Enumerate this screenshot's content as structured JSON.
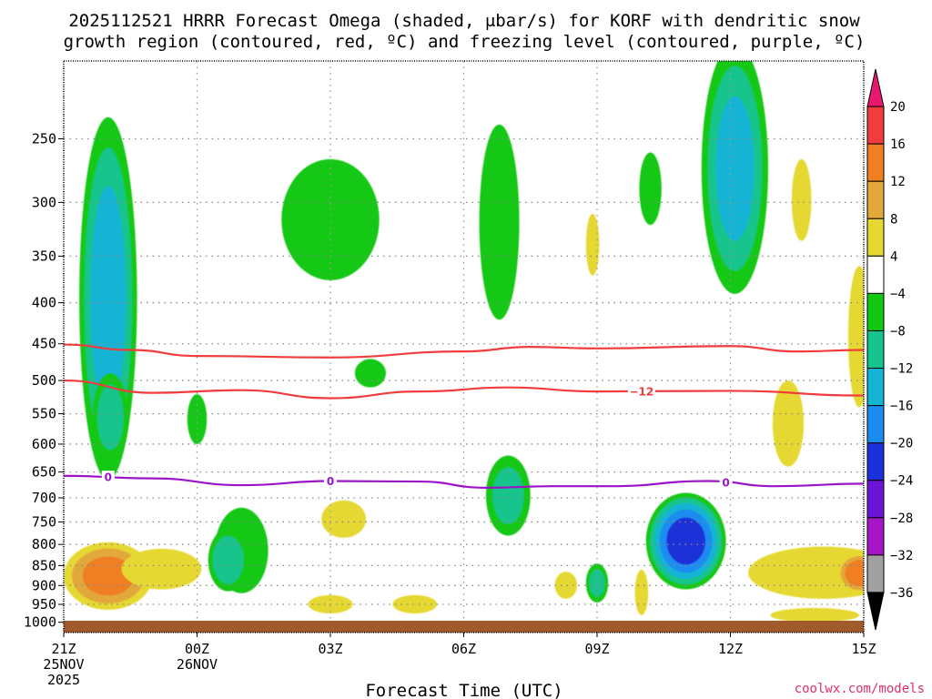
{
  "chart_data": {
    "type": "contour-cross-section",
    "title_line1": "2025112521 HRRR Forecast Omega (shaded, μbar/s) for KORF with dendritic snow",
    "title_line2": "growth region (contoured, red, ºC) and freezing level (contoured, purple, ºC)",
    "xlabel": "Forecast Time (UTC)",
    "credit": "coolwx.com/models",
    "x_range_hours": [
      0,
      18
    ],
    "x_ticks": [
      {
        "h": 0,
        "lines": [
          "21Z",
          "25NOV",
          "2025"
        ]
      },
      {
        "h": 3,
        "lines": [
          "00Z",
          "26NOV"
        ]
      },
      {
        "h": 6,
        "lines": [
          "03Z"
        ]
      },
      {
        "h": 9,
        "lines": [
          "06Z"
        ]
      },
      {
        "h": 12,
        "lines": [
          "09Z"
        ]
      },
      {
        "h": 15,
        "lines": [
          "12Z"
        ]
      },
      {
        "h": 18,
        "lines": [
          "15Z"
        ]
      }
    ],
    "y_range_mb": [
      1030,
      200
    ],
    "y_ticks": [
      250,
      300,
      350,
      400,
      450,
      500,
      550,
      600,
      650,
      700,
      750,
      800,
      850,
      900,
      950,
      1000
    ],
    "colorbar": {
      "labels": [
        "20",
        "16",
        "12",
        "8",
        "4",
        "−4",
        "−8",
        "−12",
        "−16",
        "−20",
        "−24",
        "−28",
        "−32",
        "−36"
      ],
      "bands": [
        {
          "lo": 20,
          "hi": 24,
          "color": "#e8186e"
        },
        {
          "lo": 16,
          "hi": 20,
          "color": "#f03c3c"
        },
        {
          "lo": 12,
          "hi": 16,
          "color": "#ef7f21"
        },
        {
          "lo": 8,
          "hi": 12,
          "color": "#e2a83a"
        },
        {
          "lo": 4,
          "hi": 8,
          "color": "#e6d830"
        },
        {
          "lo": -4,
          "hi": 4,
          "color": "#ffffff"
        },
        {
          "lo": -8,
          "hi": -4,
          "color": "#12c812"
        },
        {
          "lo": -12,
          "hi": -8,
          "color": "#14c48c"
        },
        {
          "lo": -16,
          "hi": -12,
          "color": "#14b4d4"
        },
        {
          "lo": -20,
          "hi": -16,
          "color": "#1a8cf0"
        },
        {
          "lo": -24,
          "hi": -20,
          "color": "#1a30d8"
        },
        {
          "lo": -28,
          "hi": -24,
          "color": "#6a14d8"
        },
        {
          "lo": -32,
          "hi": -28,
          "color": "#a814c8"
        },
        {
          "lo": -36,
          "hi": -32,
          "color": "#a0a0a0"
        },
        {
          "lo": -40,
          "hi": -36,
          "color": "#000000"
        }
      ]
    },
    "omega_blobs": [
      {
        "h": 1.0,
        "p": 450,
        "rx": 0.65,
        "rp": 215,
        "min": -14
      },
      {
        "h": 1.05,
        "p": 560,
        "rx": 0.4,
        "rp": 70,
        "min": -10
      },
      {
        "h": 3.0,
        "p": 560,
        "rx": 0.22,
        "rp": 40,
        "min": -6
      },
      {
        "h": 6.0,
        "p": 320,
        "rx": 1.1,
        "rp": 55,
        "min": -7
      },
      {
        "h": 4.0,
        "p": 820,
        "rx": 0.6,
        "rp": 100,
        "min": -5
      },
      {
        "h": 3.7,
        "p": 840,
        "rx": 0.45,
        "rp": 75,
        "min": -11
      },
      {
        "h": 6.9,
        "p": 490,
        "rx": 0.35,
        "rp": 20,
        "min": -5
      },
      {
        "h": 9.8,
        "p": 330,
        "rx": 0.45,
        "rp": 90,
        "min": -6
      },
      {
        "h": 10.0,
        "p": 700,
        "rx": 0.5,
        "rp": 80,
        "min": -9
      },
      {
        "h": 12.0,
        "p": 895,
        "rx": 0.25,
        "rp": 50,
        "min": -9
      },
      {
        "h": 13.2,
        "p": 290,
        "rx": 0.25,
        "rp": 30,
        "min": -5
      },
      {
        "h": 14.0,
        "p": 800,
        "rx": 0.9,
        "rp": 110,
        "min": -22
      },
      {
        "h": 15.1,
        "p": 290,
        "rx": 0.75,
        "rp": 100,
        "min": -13
      },
      {
        "h": 1.0,
        "p": 880,
        "rx": 1.0,
        "rp": 85,
        "min": 13
      },
      {
        "h": 2.2,
        "p": 860,
        "rx": 0.9,
        "rp": 50,
        "min": 6
      },
      {
        "h": 6.3,
        "p": 745,
        "rx": 0.5,
        "rp": 40,
        "min": 6
      },
      {
        "h": 6.0,
        "p": 950,
        "rx": 0.5,
        "rp": 25,
        "min": 7
      },
      {
        "h": 7.9,
        "p": 950,
        "rx": 0.5,
        "rp": 25,
        "min": 6
      },
      {
        "h": 11.9,
        "p": 340,
        "rx": 0.15,
        "rp": 30,
        "min": 6
      },
      {
        "h": 16.6,
        "p": 300,
        "rx": 0.22,
        "rp": 35,
        "min": 6
      },
      {
        "h": 16.3,
        "p": 570,
        "rx": 0.35,
        "rp": 70,
        "min": 6
      },
      {
        "h": 17.1,
        "p": 870,
        "rx": 1.7,
        "rp": 65,
        "min": 6
      },
      {
        "h": 17.9,
        "p": 870,
        "rx": 0.5,
        "rp": 50,
        "min": 15
      },
      {
        "h": 17.9,
        "p": 450,
        "rx": 0.25,
        "rp": 90,
        "min": 6
      },
      {
        "h": 11.3,
        "p": 900,
        "rx": 0.25,
        "rp": 35,
        "min": 6
      },
      {
        "h": 13.0,
        "p": 920,
        "rx": 0.15,
        "rp": 60,
        "min": 6
      },
      {
        "h": 16.9,
        "p": 980,
        "rx": 1.0,
        "rp": 20,
        "min": 6
      }
    ],
    "contours": [
      {
        "name": "-8C dendritic top",
        "color": "#f03c3c",
        "points": [
          [
            0,
            451
          ],
          [
            1.5,
            458
          ],
          [
            3,
            466
          ],
          [
            6,
            468
          ],
          [
            9,
            460
          ],
          [
            10.5,
            454
          ],
          [
            12,
            456
          ],
          [
            15,
            453
          ],
          [
            16.5,
            460
          ],
          [
            18,
            458
          ]
        ]
      },
      {
        "name": "-12C dendritic bottom",
        "color": "#f03c3c",
        "label": "−12",
        "label_h": 13.0,
        "points": [
          [
            0,
            500
          ],
          [
            2,
            518
          ],
          [
            4,
            514
          ],
          [
            6,
            526
          ],
          [
            8,
            516
          ],
          [
            10,
            510
          ],
          [
            12,
            516
          ],
          [
            15,
            515
          ],
          [
            18,
            522
          ]
        ]
      },
      {
        "name": "0C freezing level",
        "color": "#9b14c8",
        "label": "0",
        "label_hs": [
          1.0,
          6.0,
          14.9
        ],
        "points": [
          [
            0,
            657
          ],
          [
            2,
            662
          ],
          [
            4,
            675
          ],
          [
            6,
            667
          ],
          [
            8,
            668
          ],
          [
            9.5,
            680
          ],
          [
            11,
            677
          ],
          [
            12.3,
            677
          ],
          [
            14.5,
            667
          ],
          [
            16,
            677
          ],
          [
            18,
            672
          ]
        ]
      }
    ],
    "ground_band_color": "#a05a2c"
  }
}
